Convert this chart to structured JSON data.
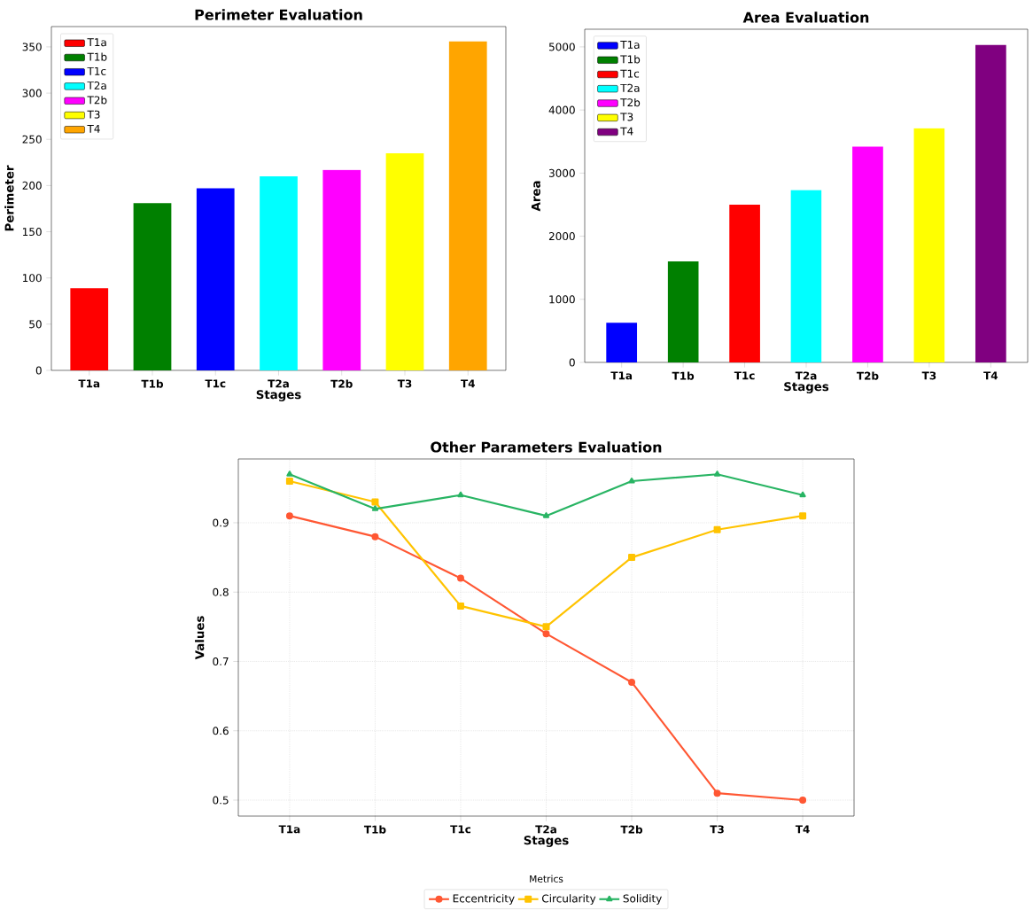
{
  "chart_data": [
    {
      "type": "bar",
      "title": "Perimeter Evaluation",
      "xlabel": "Stages",
      "ylabel": "Perimeter",
      "categories": [
        "T1a",
        "T1b",
        "T1c",
        "T2a",
        "T2b",
        "T3",
        "T4"
      ],
      "ylim": [
        0,
        372
      ],
      "yticks": [
        0,
        50,
        100,
        150,
        200,
        250,
        300,
        350
      ],
      "legend": "top left",
      "series": [
        {
          "name": "T1a",
          "color": "#ff0000",
          "values": [
            89,
            null,
            null,
            null,
            null,
            null,
            null
          ]
        },
        {
          "name": "T1b",
          "color": "#008000",
          "values": [
            null,
            181,
            null,
            null,
            null,
            null,
            null
          ]
        },
        {
          "name": "T1c",
          "color": "#0000ff",
          "values": [
            null,
            null,
            197,
            null,
            null,
            null,
            null
          ]
        },
        {
          "name": "T2a",
          "color": "#00ffff",
          "values": [
            null,
            null,
            null,
            210,
            null,
            null,
            null
          ]
        },
        {
          "name": "T2b",
          "color": "#ff00ff",
          "values": [
            null,
            null,
            null,
            null,
            217,
            null,
            null
          ]
        },
        {
          "name": "T3",
          "color": "#ffff00",
          "values": [
            null,
            null,
            null,
            null,
            null,
            235,
            null
          ]
        },
        {
          "name": "T4",
          "color": "#ffa500",
          "values": [
            null,
            null,
            null,
            null,
            null,
            null,
            356
          ]
        }
      ]
    },
    {
      "type": "bar",
      "title": "Area Evaluation",
      "xlabel": "Stages",
      "ylabel": "Area",
      "categories": [
        "T1a",
        "T1b",
        "T1c",
        "T2a",
        "T2b",
        "T3",
        "T4"
      ],
      "ylim": [
        0,
        5280
      ],
      "yticks": [
        0,
        1000,
        2000,
        3000,
        4000,
        5000
      ],
      "legend": "top left",
      "series": [
        {
          "name": "T1a",
          "color": "#0000ff",
          "values": [
            630,
            null,
            null,
            null,
            null,
            null,
            null
          ]
        },
        {
          "name": "T1b",
          "color": "#008000",
          "values": [
            null,
            1600,
            null,
            null,
            null,
            null,
            null
          ]
        },
        {
          "name": "T1c",
          "color": "#ff0000",
          "values": [
            null,
            null,
            2500,
            null,
            null,
            null,
            null
          ]
        },
        {
          "name": "T2a",
          "color": "#00ffff",
          "values": [
            null,
            null,
            null,
            2730,
            null,
            null,
            null
          ]
        },
        {
          "name": "T2b",
          "color": "#ff00ff",
          "values": [
            null,
            null,
            null,
            null,
            3420,
            null,
            null
          ]
        },
        {
          "name": "T3",
          "color": "#ffff00",
          "values": [
            null,
            null,
            null,
            null,
            null,
            3710,
            null
          ]
        },
        {
          "name": "T4",
          "color": "#800080",
          "values": [
            null,
            null,
            null,
            null,
            null,
            null,
            5030
          ]
        }
      ]
    },
    {
      "type": "line",
      "title": "Other Parameters Evaluation",
      "xlabel": "Stages",
      "ylabel": "Values",
      "categories": [
        "T1a",
        "T1b",
        "T1c",
        "T2a",
        "T2b",
        "T3",
        "T4"
      ],
      "ylim": [
        0.477,
        0.992
      ],
      "yticks": [
        0.5,
        0.6,
        0.7,
        0.8,
        0.9
      ],
      "grid": true,
      "legend": "bottom",
      "legend_title": "Metrics",
      "series": [
        {
          "name": "Eccentricity",
          "color": "#ff5733",
          "marker": "circle",
          "values": [
            0.91,
            0.88,
            0.82,
            0.74,
            0.67,
            0.51,
            0.5
          ]
        },
        {
          "name": "Circularity",
          "color": "#ffc300",
          "marker": "square",
          "values": [
            0.96,
            0.93,
            0.78,
            0.75,
            0.85,
            0.89,
            0.91
          ]
        },
        {
          "name": "Solidity",
          "color": "#28b463",
          "marker": "triangle",
          "values": [
            0.97,
            0.92,
            0.94,
            0.91,
            0.96,
            0.97,
            0.94
          ]
        }
      ]
    }
  ]
}
